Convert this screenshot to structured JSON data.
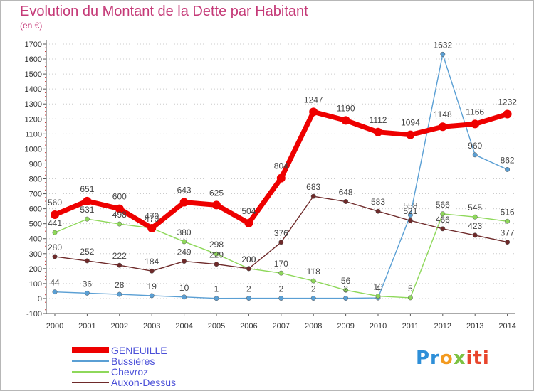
{
  "title": "Evolution du Montant de la Dette par Habitant",
  "unit": "(en €)",
  "logo": {
    "text": "Proxiti",
    "parts": [
      "Pr",
      "o",
      "x",
      "iti"
    ]
  },
  "chart_data": {
    "type": "line",
    "x": [
      "2000",
      "2001",
      "2002",
      "2003",
      "2004",
      "2005",
      "2006",
      "2007",
      "2008",
      "2009",
      "2010",
      "2011",
      "2012",
      "2013",
      "2014"
    ],
    "ylim": [
      -100,
      1700
    ],
    "yticks": [
      -100,
      0,
      100,
      200,
      300,
      400,
      500,
      600,
      700,
      800,
      900,
      1000,
      1100,
      1200,
      1300,
      1400,
      1500,
      1600,
      1700
    ],
    "grid": "horizontal dotted",
    "legend_position": "bottom-left",
    "series": [
      {
        "name": "GENEUILLE",
        "color": "#ee0000",
        "values": [
          560,
          651,
          600,
          470,
          643,
          625,
          504,
          804,
          1247,
          1190,
          1112,
          1094,
          1148,
          1166,
          1232
        ],
        "labels": [
          "560",
          "651",
          "600",
          "470",
          "643",
          "625",
          "504",
          "804",
          "1247",
          "1190",
          "1112",
          "1094",
          "1148",
          "1166",
          "1232"
        ]
      },
      {
        "name": "Bussières",
        "color": "#5a9fd4",
        "values": [
          44,
          36,
          28,
          19,
          10,
          1,
          2,
          2,
          2,
          2,
          4,
          558,
          1632,
          960,
          862
        ],
        "labels": [
          "44",
          "36",
          "28",
          "19",
          "10",
          "1",
          "2",
          "2",
          "2",
          "2",
          "4",
          "558",
          "1632",
          "960",
          "862"
        ]
      },
      {
        "name": "Chevroz",
        "color": "#8ed85a",
        "values": [
          441,
          531,
          498,
          470,
          380,
          298,
          200,
          170,
          118,
          56,
          16,
          5,
          566,
          545,
          516
        ],
        "labels": [
          "441",
          "531",
          "498",
          "470",
          "380",
          "298",
          "200",
          "170",
          "118",
          "56",
          "16",
          "5",
          "566",
          "545",
          "516"
        ]
      },
      {
        "name": "Auxon-Dessus",
        "color": "#6e2a2a",
        "values": [
          280,
          252,
          222,
          184,
          249,
          229,
          200,
          376,
          683,
          648,
          583,
          521,
          466,
          423,
          377
        ],
        "labels": [
          "280",
          "252",
          "222",
          "184",
          "249",
          "229",
          "200",
          "376",
          "683",
          "648",
          "583",
          "521",
          "466",
          "423",
          "377"
        ]
      }
    ]
  }
}
